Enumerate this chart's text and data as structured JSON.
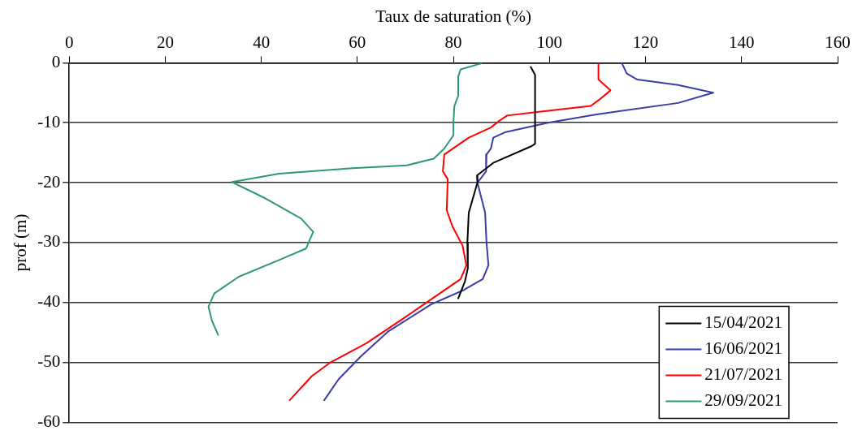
{
  "chart_data": {
    "type": "line",
    "xlabel": "Taux de saturation (%)",
    "ylabel": "prof (m)",
    "xlim": [
      0,
      160
    ],
    "xticks": [
      0,
      20,
      40,
      60,
      80,
      100,
      120,
      140,
      160
    ],
    "ylim": [
      -60,
      0
    ],
    "yticks": [
      -60,
      -50,
      -40,
      -30,
      -20,
      -10,
      0
    ],
    "grid": "y",
    "legend": "bottom right",
    "marker": "none",
    "line_style": "solid",
    "series": [
      {
        "name": "15/04/2021",
        "color": "#000000",
        "x": [
          96.1,
          97,
          97,
          96.3,
          88.3,
          84.9,
          85,
          83.2,
          82.9,
          83,
          82.4,
          81
        ],
        "values": [
          -0.7,
          -2,
          -13.5,
          -13.9,
          -16.7,
          -18.8,
          -20,
          -25,
          -30.1,
          -34.3,
          -36.5,
          -39.3
        ]
      },
      {
        "name": "16/06/2021",
        "color": "#3c3ca8",
        "x": [
          115.1,
          116.1,
          118.3,
          126.8,
          134.1,
          126.8,
          109.8,
          99.7,
          90.7,
          88.3,
          87.8,
          86.9,
          86.8,
          85,
          86.6,
          86.9,
          87.3,
          86.1,
          82.2,
          75.4,
          66.3,
          60.7,
          56.1,
          53.1
        ],
        "values": [
          -0.1,
          -1.8,
          -2.8,
          -3.7,
          -5,
          -6.7,
          -8.6,
          -10,
          -11.6,
          -12.5,
          -14.3,
          -15.3,
          -18.1,
          -20,
          -25,
          -30.1,
          -33.8,
          -36.1,
          -37.9,
          -40.3,
          -44.9,
          -49,
          -52.8,
          -56.3
        ]
      },
      {
        "name": "21/07/2021",
        "color": "#ff0000",
        "x": [
          110.2,
          110.2,
          112.7,
          110.3,
          108.6,
          97.5,
          91.2,
          89.5,
          87.8,
          83.2,
          78.1,
          77.8,
          78.8,
          78.8,
          78.6,
          79.8,
          81.9,
          82.7,
          81.5,
          76.4,
          69.7,
          61.9,
          54.4,
          50.5,
          45.9
        ],
        "values": [
          -0.1,
          -2.8,
          -4.6,
          -6.2,
          -7.2,
          -8.2,
          -8.8,
          -9.7,
          -10.8,
          -12.5,
          -15.3,
          -18.1,
          -19.4,
          -19.9,
          -24.6,
          -27.3,
          -30.5,
          -33.8,
          -36.1,
          -38.9,
          -42.6,
          -46.8,
          -50,
          -52.3,
          -56.3
        ]
      },
      {
        "name": "29/09/2021",
        "color": "#2e9a6a",
        "x": [
          85.8,
          81.5,
          81,
          81,
          80.2,
          80,
          80,
          78.1,
          75.9,
          70.3,
          59,
          43.7,
          33.9,
          40.8,
          48.3,
          50.8,
          49.3,
          43.7,
          35.3,
          30.2,
          29,
          29.7,
          31
        ],
        "values": [
          -0.1,
          -1.1,
          -2.3,
          -5.5,
          -7.2,
          -10,
          -12.1,
          -14.3,
          -16,
          -17.1,
          -17.6,
          -18.5,
          -19.9,
          -22.6,
          -26,
          -28.2,
          -31,
          -32.9,
          -35.7,
          -38.5,
          -40.7,
          -43,
          -45.4
        ]
      }
    ]
  }
}
